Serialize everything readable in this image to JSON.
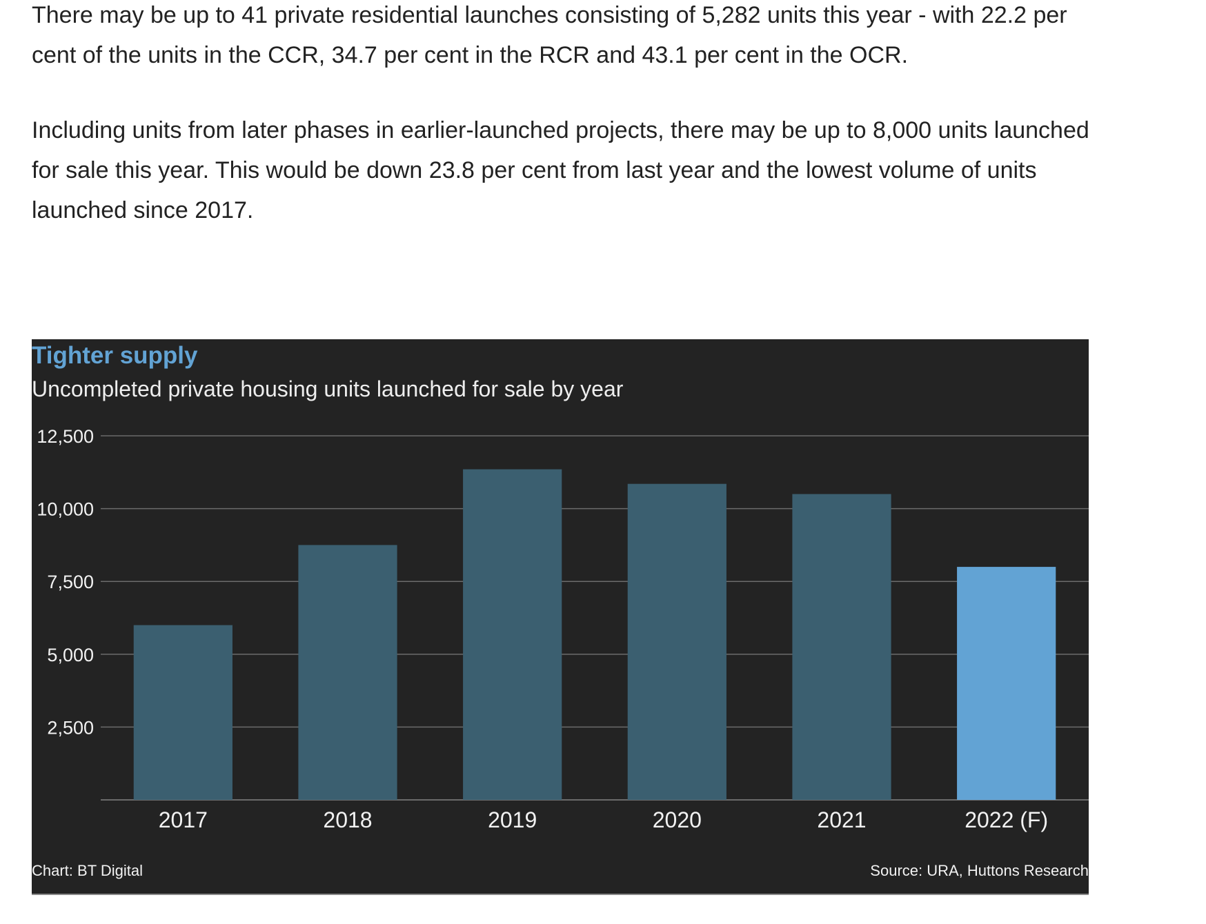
{
  "article": {
    "paragraph_1": "There may be up to 41 private residential launches consisting of 5,282 units this year - with 22.2 per cent of the units in the CCR, 34.7 per cent in the RCR and 43.1 per cent in the OCR.",
    "paragraph_2": "Including units from later phases in earlier-launched projects, there may be up to 8,000 units launched for sale this year. This would be down 23.8 per cent from last year and the lowest volume of units launched since 2017."
  },
  "chart_data": {
    "type": "bar",
    "title": "Tighter supply",
    "subtitle": "Uncompleted private housing units launched for sale by year",
    "categories": [
      "2017",
      "2018",
      "2019",
      "2020",
      "2021",
      "2022 (F)"
    ],
    "values": [
      6000,
      8750,
      11350,
      10850,
      10500,
      8000
    ],
    "ylim": [
      0,
      12500
    ],
    "yticks": [
      2500,
      5000,
      7500,
      10000,
      12500
    ],
    "ytick_labels": [
      "2,500",
      "5,000",
      "7,500",
      "10,000",
      "12,500"
    ],
    "xlabel": "",
    "ylabel": "",
    "grid": true,
    "colors": {
      "bar": "#3b5f70",
      "highlight_bar": "#62a3d4",
      "background": "#232323",
      "grid": "#6b6b6b",
      "text": "#f2f2f2",
      "title": "#62a3d4"
    },
    "highlight_index": 5,
    "credit": "Chart: BT Digital",
    "source": "Source: URA, Huttons Research"
  }
}
